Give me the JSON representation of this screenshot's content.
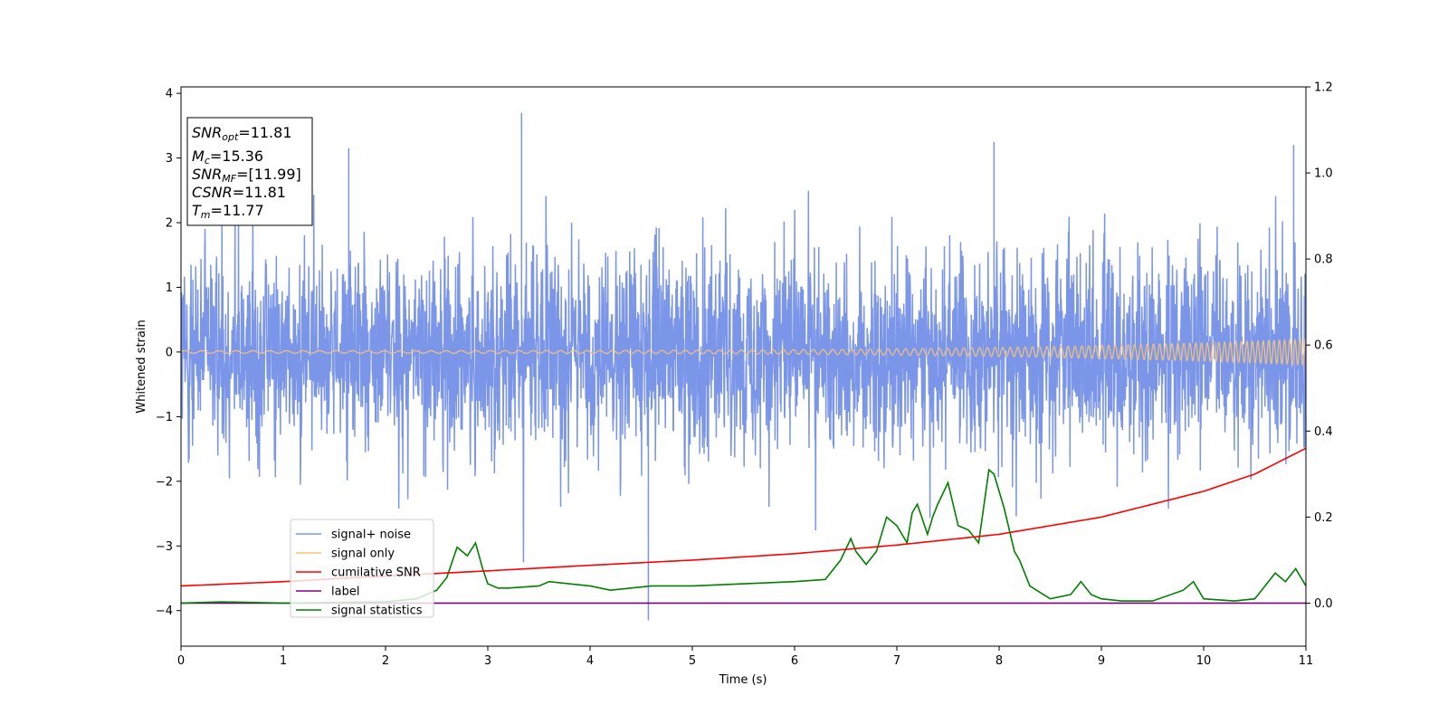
{
  "chart_data": {
    "type": "line",
    "xlabel": "Time (s)",
    "ylabel": "Whitened strain",
    "xlim": [
      0,
      11
    ],
    "ylim": [
      -4.55,
      4.1
    ],
    "y2lim": [
      -0.1,
      1.2
    ],
    "x_ticks": [
      0,
      1,
      2,
      3,
      4,
      5,
      6,
      7,
      8,
      9,
      10,
      11
    ],
    "y_ticks": [
      4,
      3,
      2,
      1,
      0,
      -1,
      -2,
      -3,
      -4
    ],
    "y_tick_labels": [
      "4",
      "3",
      "2",
      "1",
      "0",
      "−1",
      "−2",
      "−3",
      "−4"
    ],
    "y2_ticks": [
      1.2,
      1.0,
      0.8,
      0.6,
      0.4,
      0.2,
      0.0
    ],
    "y2_tick_labels": [
      "1.2",
      "1.0",
      "0.8",
      "0.6",
      "0.4",
      "0.2",
      "0.0"
    ],
    "legend": {
      "placement": "lower-left",
      "entries": [
        {
          "label": "signal+ noise",
          "color": "#7b96e8"
        },
        {
          "label": "signal only",
          "color": "#f5c27a"
        },
        {
          "label": "cumilative SNR",
          "color": "#ff0000"
        },
        {
          "label": "label",
          "color": "#800080"
        },
        {
          "label": "signal statistics",
          "color": "#008000"
        }
      ]
    },
    "info_box": {
      "snr_opt_base": "SNR",
      "snr_opt_sub": "opt",
      "snr_opt_value": "=11.81",
      "mc_base": "M",
      "mc_sub": "c",
      "mc_value": "=15.36",
      "snr_mf_base": "SNR",
      "snr_mf_sub": "MF",
      "snr_mf_value": "=[11.99]",
      "csnr_base": "CSNR",
      "csnr_value": "=11.81",
      "tm_base": "T",
      "tm_sub": "m",
      "tm_value": "=11.77"
    },
    "series": [
      {
        "name": "signal+ noise",
        "axis": "left",
        "color": "#7b96e8",
        "envelope_typical": 1.9,
        "envelope_max": 3.7,
        "envelope_min": -4.15
      },
      {
        "name": "signal only",
        "axis": "left",
        "color": "#f5c27a",
        "amplitude_start": 0.02,
        "amplitude_end": 0.2
      },
      {
        "name": "cumilative SNR",
        "axis": "right",
        "color": "#ff0000",
        "x": [
          0,
          1,
          2,
          3,
          4,
          5,
          6,
          7,
          8,
          9,
          10,
          10.5,
          11
        ],
        "values": [
          0.04,
          0.05,
          0.063,
          0.075,
          0.088,
          0.1,
          0.115,
          0.135,
          0.16,
          0.2,
          0.26,
          0.3,
          0.36
        ]
      },
      {
        "name": "label",
        "axis": "right",
        "color": "#800080",
        "x": [
          0,
          11
        ],
        "values": [
          0.0,
          0.0
        ]
      },
      {
        "name": "signal statistics",
        "axis": "right",
        "color": "#008000",
        "x": [
          0,
          0.4,
          1.0,
          2.0,
          2.3,
          2.5,
          2.6,
          2.7,
          2.8,
          2.88,
          2.95,
          3.0,
          3.1,
          3.2,
          3.5,
          3.6,
          4.0,
          4.2,
          4.6,
          5.0,
          5.5,
          6.0,
          6.3,
          6.45,
          6.55,
          6.6,
          6.7,
          6.8,
          6.9,
          7.0,
          7.1,
          7.15,
          7.2,
          7.3,
          7.35,
          7.4,
          7.5,
          7.6,
          7.7,
          7.8,
          7.9,
          7.95,
          8.05,
          8.15,
          8.2,
          8.3,
          8.5,
          8.7,
          8.8,
          8.9,
          9.0,
          9.2,
          9.5,
          9.8,
          9.9,
          10.0,
          10.3,
          10.5,
          10.6,
          10.7,
          10.8,
          10.9,
          11.0
        ],
        "values": [
          0.0,
          0.003,
          0.0,
          0.003,
          0.01,
          0.03,
          0.06,
          0.13,
          0.11,
          0.14,
          0.08,
          0.045,
          0.035,
          0.035,
          0.04,
          0.05,
          0.04,
          0.03,
          0.04,
          0.04,
          0.045,
          0.05,
          0.055,
          0.1,
          0.15,
          0.12,
          0.09,
          0.12,
          0.2,
          0.18,
          0.14,
          0.21,
          0.23,
          0.16,
          0.2,
          0.23,
          0.28,
          0.18,
          0.17,
          0.14,
          0.31,
          0.3,
          0.22,
          0.12,
          0.1,
          0.04,
          0.01,
          0.02,
          0.05,
          0.02,
          0.01,
          0.005,
          0.005,
          0.03,
          0.05,
          0.01,
          0.005,
          0.01,
          0.04,
          0.07,
          0.05,
          0.08,
          0.04
        ]
      }
    ]
  }
}
